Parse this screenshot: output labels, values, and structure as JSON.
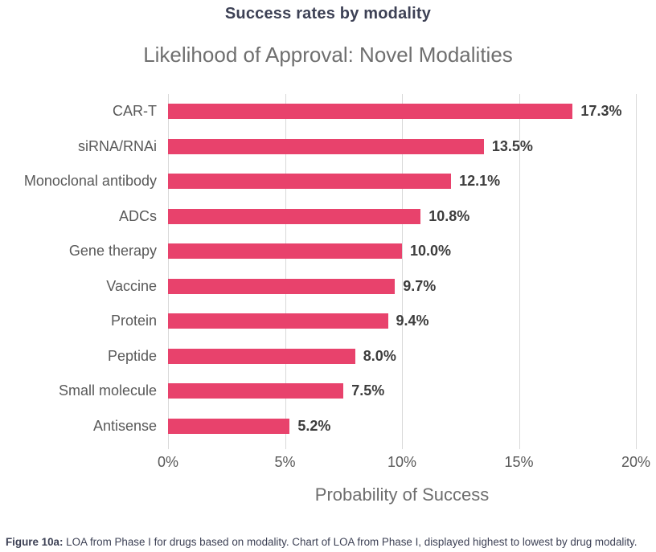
{
  "page": {
    "title": "Success rates by modality",
    "footer": {
      "prefix": "Figure 10a:",
      "text": " LOA from Phase I for drugs based on modality. Chart of LOA from Phase I, displayed highest to lowest by drug modality."
    }
  },
  "chart_data": {
    "type": "bar",
    "orientation": "horizontal",
    "title": "Likelihood of Approval: Novel Modalities",
    "xlabel": "Probability of Success",
    "ylabel": "",
    "categories": [
      "CAR-T",
      "siRNA/RNAi",
      "Monoclonal antibody",
      "ADCs",
      "Gene therapy",
      "Vaccine",
      "Protein",
      "Peptide",
      "Small molecule",
      "Antisense"
    ],
    "values": [
      17.3,
      13.5,
      12.1,
      10.8,
      10.0,
      9.7,
      9.4,
      8.0,
      7.5,
      5.2
    ],
    "value_labels": [
      "17.3%",
      "13.5%",
      "12.1%",
      "10.8%",
      "10.0%",
      "9.7%",
      "9.4%",
      "8.0%",
      "7.5%",
      "5.2%"
    ],
    "xlim": [
      0,
      20
    ],
    "xticks": [
      0,
      5,
      10,
      15,
      20
    ],
    "xtick_labels": [
      "0%",
      "5%",
      "10%",
      "15%",
      "20%"
    ],
    "grid": true,
    "legend": "none",
    "sort_order": "highest to lowest",
    "bar_color": "#e8426c",
    "gridline_color": "#d9d9d9",
    "title_color": "#3d4155",
    "subtitle_color": "#6f6f6f",
    "label_color": "#595959",
    "value_color": "#3d3d3d"
  }
}
